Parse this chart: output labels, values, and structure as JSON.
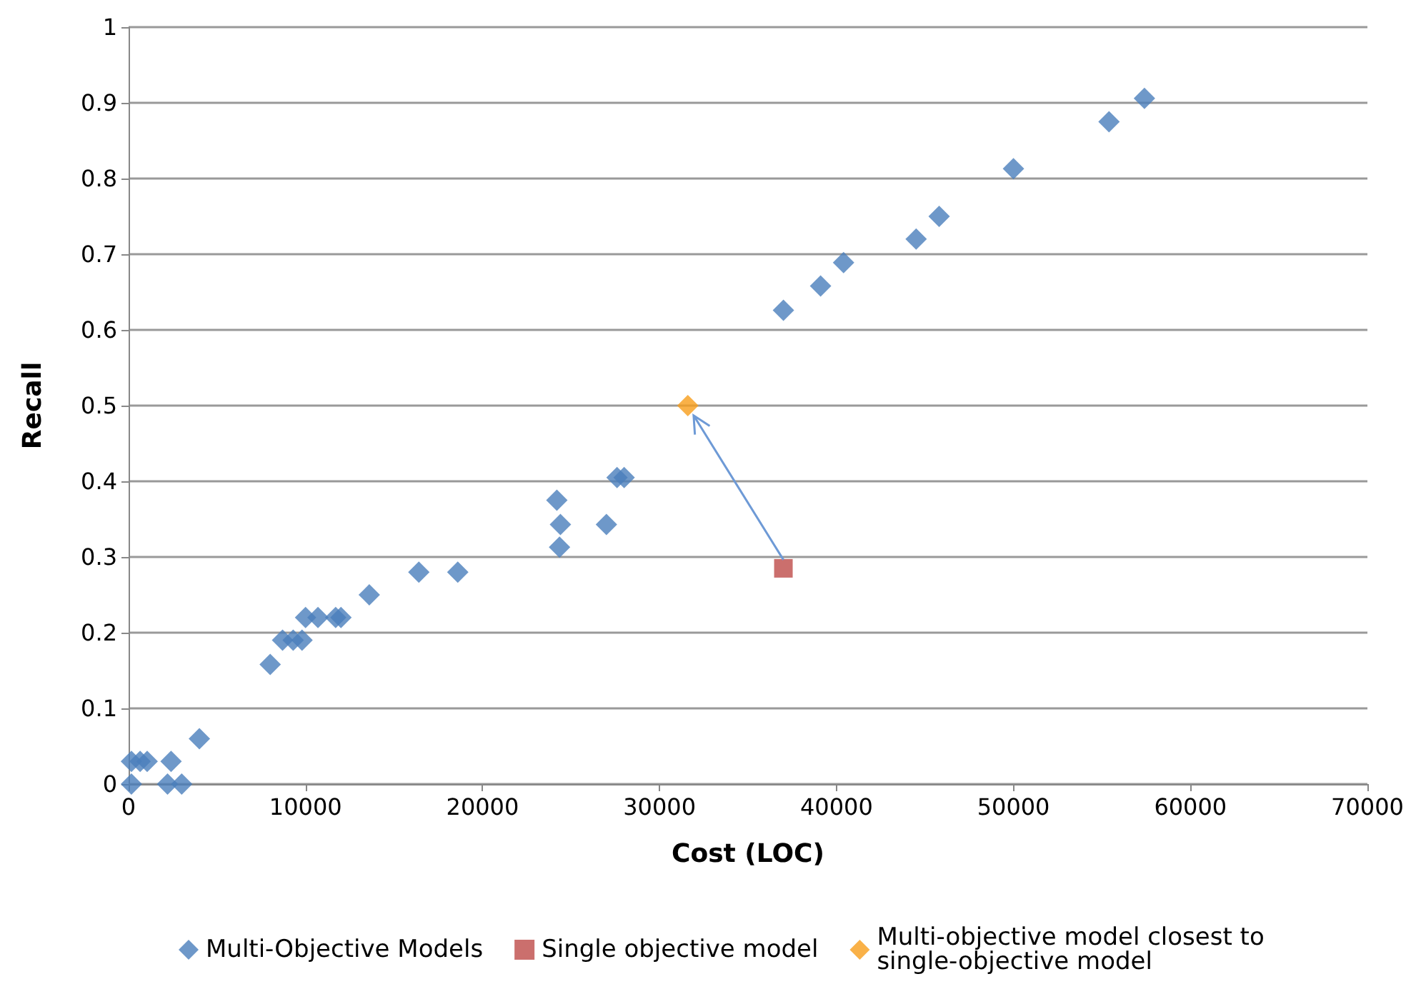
{
  "chart_data": {
    "type": "scatter",
    "xlabel": "Cost (LOC)",
    "ylabel": "Recall",
    "xlim": [
      0,
      70000
    ],
    "xticks": [
      0,
      10000,
      20000,
      30000,
      40000,
      50000,
      60000,
      70000
    ],
    "ylim": [
      0,
      1
    ],
    "yticks": [
      0,
      0.1,
      0.2,
      0.3,
      0.4,
      0.5,
      0.6,
      0.7,
      0.8,
      0.9,
      1
    ],
    "grid": "y",
    "legend": "bottom",
    "series": [
      {
        "name": "Multi-Objective Models",
        "color": "#4a7ebb",
        "marker": "diamond",
        "x": [
          160,
          160,
          650,
          1050,
          2400,
          2200,
          3000,
          4000,
          8000,
          8700,
          9300,
          9800,
          10000,
          10700,
          11700,
          12000,
          13600,
          16400,
          18600,
          24200,
          24400,
          24350,
          27000,
          27600,
          28000,
          37000,
          39100,
          40400,
          44500,
          45800,
          50000,
          55400,
          57400
        ],
        "values": [
          0,
          0.03,
          0.03,
          0.03,
          0.03,
          0,
          0,
          0.06,
          0.158,
          0.19,
          0.19,
          0.19,
          0.22,
          0.22,
          0.22,
          0.22,
          0.25,
          0.28,
          0.28,
          0.375,
          0.343,
          0.313,
          0.343,
          0.405,
          0.405,
          0.626,
          0.658,
          0.689,
          0.72,
          0.75,
          0.813,
          0.875,
          0.906
        ]
      },
      {
        "name": "Single objective model",
        "color": "#be4b48",
        "marker": "square",
        "x": [
          37000
        ],
        "values": [
          0.285
        ]
      },
      {
        "name": "Multi-objective model closest to single-objective model",
        "color": "#f79e1a",
        "marker": "diamond",
        "x": [
          31600
        ],
        "values": [
          0.5
        ]
      }
    ]
  }
}
